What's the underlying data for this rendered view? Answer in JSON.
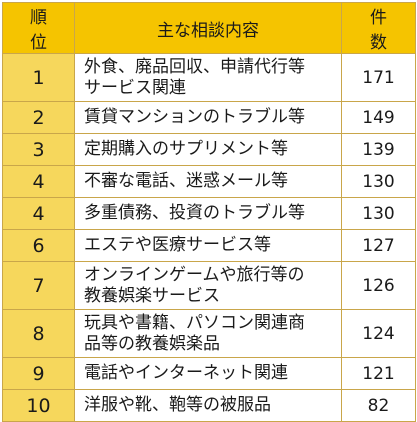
{
  "header": {
    "rank": "順 位",
    "topic": "主な相談内容",
    "count": "件 数"
  },
  "rows": [
    {
      "rank": "1",
      "lines": [
        "外食、廃品回収、申請代行等",
        "サービス関連"
      ],
      "count": "171"
    },
    {
      "rank": "2",
      "lines": [
        "賃貸マンションのトラブル等"
      ],
      "count": "149"
    },
    {
      "rank": "3",
      "lines": [
        "定期購入のサプリメント等"
      ],
      "count": "139"
    },
    {
      "rank": "4",
      "lines": [
        "不審な電話、迷惑メール等"
      ],
      "count": "130"
    },
    {
      "rank": "4",
      "lines": [
        "多重債務、投資のトラブル等"
      ],
      "count": "130"
    },
    {
      "rank": "6",
      "lines": [
        "エステや医療サービス等"
      ],
      "count": "127"
    },
    {
      "rank": "7",
      "lines": [
        "オンラインゲームや旅行等の",
        "教養娯楽サービス"
      ],
      "count": "126"
    },
    {
      "rank": "8",
      "lines": [
        "玩具や書籍、パソコン関連商",
        "品等の教養娯楽品"
      ],
      "count": "124"
    },
    {
      "rank": "9",
      "lines": [
        "電話やインターネット関連"
      ],
      "count": "121"
    },
    {
      "rank": "10",
      "lines": [
        "洋服や靴、鞄等の被服品"
      ],
      "count": "82"
    }
  ],
  "colors": {
    "header_bg": "#f5c400",
    "rank_bg": "#f6d75c",
    "border": "#c9a64a"
  }
}
